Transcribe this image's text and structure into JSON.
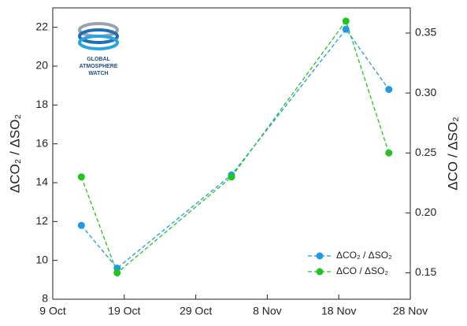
{
  "chart_data": {
    "type": "line",
    "y_label": "ΔCO₂ / ΔSO₂",
    "y2_label": "ΔCO / ΔSO₂",
    "logo": [
      "GLOBAL",
      "ATMOSPHERE",
      "WATCH"
    ],
    "x": [
      "13 Oct",
      "18 Oct",
      "3 Nov",
      "19 Nov",
      "25 Nov"
    ],
    "xlim": [
      "9 Oct",
      "28 Nov"
    ],
    "xticks": [
      "9 Oct",
      "19 Oct",
      "29 Oct",
      "8 Nov",
      "18 Nov",
      "28 Nov"
    ],
    "ylim": [
      8,
      23
    ],
    "yticks": [
      8,
      10,
      12,
      14,
      16,
      18,
      20,
      22
    ],
    "y2lim": [
      0.128,
      0.371
    ],
    "y2ticks": [
      0.15,
      {
        "value": 0.2,
        "label": "0.20"
      },
      0.25,
      {
        "value": 0.3,
        "label": "0.30"
      },
      0.35
    ],
    "legend": "lower right",
    "series": [
      {
        "name": "ΔCO₂ / ΔSO₂",
        "color": "#1f9be6",
        "values": [
          11.8,
          9.6,
          14.4,
          21.9,
          18.8
        ]
      },
      {
        "name": "ΔCO / ΔSO₂",
        "color": "#22c51e",
        "values": [
          0.23,
          0.15,
          0.23,
          0.36,
          0.25
        ],
        "axis": "y2"
      }
    ]
  }
}
